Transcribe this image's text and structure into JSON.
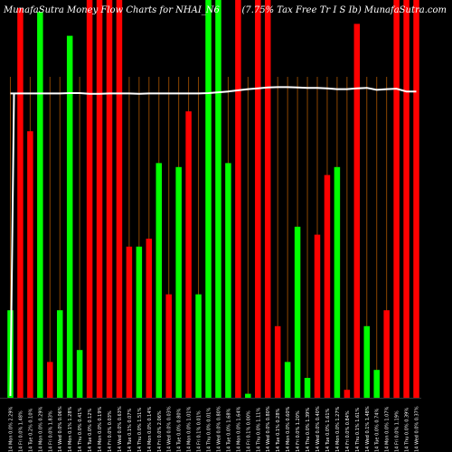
{
  "header": {
    "left": "MunafaSutra  Money Flow  Charts for NHAI_N6",
    "right": "(7.75% Tax Free Tr I S Ib) MunafaSutra.com"
  },
  "colors": {
    "background": "#000000",
    "up": "#00ff00",
    "down": "#ff0000",
    "line": "#ffffff",
    "grid": "#8b4500",
    "axis_text": "#ffffff"
  },
  "chart_data": {
    "type": "bar",
    "title": "MunafaSutra  Money Flow  Charts for NHAI_N6",
    "subtitle": "(7.75% Tax Free Tr I S Ib) MunafaSutra.com",
    "grid": true,
    "ylim": [
      0,
      100
    ],
    "categories": [
      "14 Mon 0.0% 2.29%",
      "14 Fri 0.0% 1.48%",
      "14 Tue 0.2% 0.10%",
      "14 Mon 0.0% 0.29%",
      "14 Fri 0.0% 1.83%",
      "14 Wed 0.0% 0.06%",
      "14 Mon 0.1% 1.28%",
      "14 Thu 0.0% 0.41%",
      "14 Tue 0.0% 0.12%",
      "14 Mon 0.0% 0.19%",
      "14 Fri 0.0% 0.03%",
      "14 Wed 0.0% 0.63%",
      "14 Tue 0.1% 0.07%",
      "14 Thu 0.0% 1.51%",
      "14 Mon 0.0% 0.14%",
      "14 Fri 0.0% 2.06%",
      "14 Wed 0.0% 0.03%",
      "14 Tue 0.0% 0.80%",
      "14 Mon 0.0% 1.01%",
      "14 Fri 0.1% 0.01%",
      "14 Thu 0.0% 0.01%",
      "14 Wed 0.0% 0.80%",
      "14 Tue 0.0% 1.68%",
      "14 Mon 0.0% 1.64%",
      "14 Fri 0.1% 0.00%",
      "14 Thu 0.0% 1.11%",
      "14 Wed 0.0% 0.80%",
      "14 Tue 0.1% 0.28%",
      "14 Mon 0.0% 0.60%",
      "14 Fri 0.0% 1.20%",
      "14 Thu 0.0% 1.39%",
      "14 Wed 0.0% 0.40%",
      "14 Tue 0.0% 1.61%",
      "14 Mon 0.0% 1.27%",
      "14 Fri 0.0% 0.84%",
      "14 Thu 0.1% 1.61%",
      "14 Wed 0.1% 1.48%",
      "14 Tue 0.0% 0.74%",
      "14 Mon 0.0% 1.07%",
      "14 Fri 0.0% 1.19%",
      "14 Thu 0.0% 0.39%",
      "14 Wed 0.0% 0.37%"
    ],
    "series": [
      {
        "values": [
          22,
          98,
          67,
          97,
          9,
          22,
          91,
          12,
          100,
          100,
          100,
          100,
          38,
          38,
          40,
          59,
          26,
          58,
          72,
          26,
          100,
          100,
          59,
          100,
          1,
          100,
          100,
          18,
          9,
          43,
          5,
          41,
          56,
          58,
          2,
          94,
          18,
          7,
          22,
          100,
          100,
          100
        ],
        "colors": [
          "up",
          "down",
          "down",
          "up",
          "down",
          "up",
          "up",
          "up",
          "down",
          "down",
          "down",
          "down",
          "down",
          "up",
          "down",
          "up",
          "down",
          "up",
          "down",
          "up",
          "up",
          "up",
          "up",
          "down",
          "up",
          "down",
          "down",
          "down",
          "up",
          "up",
          "up",
          "down",
          "down",
          "up",
          "down",
          "down",
          "up",
          "up",
          "down",
          "down",
          "down",
          "down"
        ]
      },
      {
        "type": "line",
        "values": [
          76.5,
          76.5,
          76.5,
          76.5,
          76.5,
          76.5,
          76.6,
          76.6,
          76.4,
          76.4,
          76.5,
          76.5,
          76.5,
          76.4,
          76.5,
          76.5,
          76.5,
          76.5,
          76.5,
          76.5,
          76.6,
          76.8,
          77.0,
          77.3,
          77.6,
          77.8,
          78.0,
          78.1,
          78.1,
          78.0,
          77.9,
          77.9,
          77.8,
          77.6,
          77.6,
          77.8,
          77.9,
          77.4,
          77.6,
          77.7,
          77.0,
          77.0
        ]
      }
    ]
  }
}
